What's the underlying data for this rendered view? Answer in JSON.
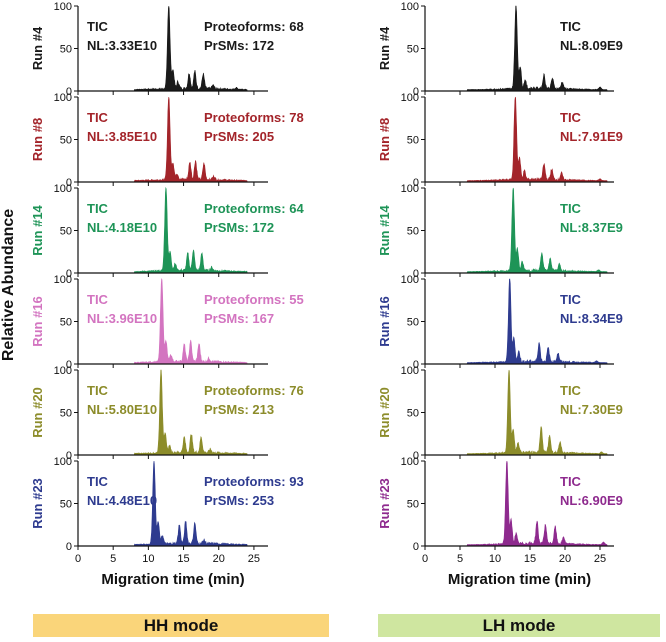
{
  "figure": {
    "ylabel": "Relative Abundance",
    "xlabel": "Migration time (min)",
    "modes": [
      {
        "label": "HH mode",
        "color": "#fad57a"
      },
      {
        "label": "LH mode",
        "color": "#cfe6a0"
      }
    ]
  },
  "chart_data": [
    {
      "type": "area",
      "title": "HH mode",
      "xlabel": "Migration time (min)",
      "ylabel": "Relative Abundance",
      "xlim": [
        0,
        27
      ],
      "ylim": [
        0,
        100
      ],
      "xticks": [
        0,
        5,
        10,
        15,
        20,
        25
      ],
      "yticks": [
        0,
        50,
        100
      ],
      "runs": [
        {
          "run": "Run #4",
          "color": "#1a1a1a",
          "tic": "TIC",
          "nl": "NL:3.33E10",
          "proteoforms": "Proteoforms: 68",
          "prsms": "PrSMs: 172",
          "peaks": [
            [
              12.9,
              100
            ],
            [
              13.5,
              22
            ],
            [
              14.2,
              8
            ],
            [
              15.8,
              18
            ],
            [
              16.6,
              20
            ],
            [
              17.8,
              17
            ],
            [
              19.2,
              4
            ],
            [
              22.5,
              2
            ]
          ],
          "baseline_range": [
            8,
            24
          ]
        },
        {
          "run": "Run #8",
          "color": "#a3242a",
          "tic": "TIC",
          "nl": "NL:3.85E10",
          "proteoforms": "Proteoforms: 78",
          "prsms": "PrSMs: 205",
          "peaks": [
            [
              12.9,
              100
            ],
            [
              13.5,
              20
            ],
            [
              14.1,
              7
            ],
            [
              15.9,
              20
            ],
            [
              16.7,
              22
            ],
            [
              17.9,
              19
            ],
            [
              19.3,
              4
            ]
          ],
          "baseline_range": [
            8,
            24
          ]
        },
        {
          "run": "Run #14",
          "color": "#1e9457",
          "tic": "TIC",
          "nl": "NL:4.18E10",
          "proteoforms": "Proteoforms: 64",
          "prsms": "PrSMs: 172",
          "peaks": [
            [
              12.5,
              100
            ],
            [
              13.1,
              22
            ],
            [
              13.8,
              8
            ],
            [
              15.6,
              20
            ],
            [
              16.4,
              24
            ],
            [
              17.6,
              20
            ],
            [
              19.0,
              4
            ]
          ],
          "baseline_range": [
            8,
            24
          ]
        },
        {
          "run": "Run #16",
          "color": "#d374c0",
          "tic": "TIC",
          "nl": "NL:3.96E10",
          "proteoforms": "Proteoforms: 55",
          "prsms": "PrSMs: 167",
          "peaks": [
            [
              11.9,
              100
            ],
            [
              12.5,
              24
            ],
            [
              13.2,
              8
            ],
            [
              15.1,
              20
            ],
            [
              16.0,
              24
            ],
            [
              17.2,
              21
            ],
            [
              18.6,
              4
            ]
          ],
          "baseline_range": [
            8,
            24
          ]
        },
        {
          "run": "Run #20",
          "color": "#8c8c2a",
          "tic": "TIC",
          "nl": "NL:5.80E10",
          "proteoforms": "Proteoforms: 76",
          "prsms": "PrSMs: 213",
          "peaks": [
            [
              11.8,
              100
            ],
            [
              12.4,
              22
            ],
            [
              13.0,
              8
            ],
            [
              15.1,
              18
            ],
            [
              16.1,
              22
            ],
            [
              17.5,
              18
            ],
            [
              18.8,
              4
            ]
          ],
          "baseline_range": [
            8,
            24
          ]
        },
        {
          "run": "Run #23",
          "color": "#2e3b8f",
          "tic": "TIC",
          "nl": "NL:4.48E10",
          "proteoforms": "Proteoforms: 93",
          "prsms": "PrSMs: 253",
          "peaks": [
            [
              10.8,
              100
            ],
            [
              11.4,
              26
            ],
            [
              12.0,
              10
            ],
            [
              14.4,
              22
            ],
            [
              15.3,
              26
            ],
            [
              16.6,
              24
            ],
            [
              17.9,
              4
            ]
          ],
          "baseline_range": [
            8,
            24
          ]
        }
      ]
    },
    {
      "type": "area",
      "title": "LH mode",
      "xlabel": "Migration time (min)",
      "ylabel": "Relative Abundance",
      "xlim": [
        0,
        27
      ],
      "ylim": [
        0,
        100
      ],
      "xticks": [
        0,
        5,
        10,
        15,
        20,
        25
      ],
      "yticks": [
        0,
        50,
        100
      ],
      "runs": [
        {
          "run": "Run #4",
          "color": "#1a1a1a",
          "tic": "TIC",
          "nl": "NL:8.09E9",
          "peaks": [
            [
              13.0,
              100
            ],
            [
              13.6,
              26
            ],
            [
              14.3,
              10
            ],
            [
              17.0,
              16
            ],
            [
              18.2,
              12
            ],
            [
              19.6,
              8
            ],
            [
              25.0,
              3
            ]
          ],
          "baseline_range": [
            6,
            26
          ]
        },
        {
          "run": "Run #8",
          "color": "#a3242a",
          "tic": "TIC",
          "nl": "NL:7.91E9",
          "peaks": [
            [
              12.9,
              100
            ],
            [
              13.5,
              26
            ],
            [
              14.2,
              10
            ],
            [
              17.0,
              18
            ],
            [
              18.1,
              12
            ],
            [
              19.5,
              8
            ],
            [
              25.0,
              2
            ]
          ],
          "baseline_range": [
            6,
            26
          ]
        },
        {
          "run": "Run #14",
          "color": "#1e9457",
          "tic": "TIC",
          "nl": "NL:8.37E9",
          "peaks": [
            [
              12.6,
              100
            ],
            [
              13.2,
              26
            ],
            [
              13.9,
              10
            ],
            [
              16.7,
              20
            ],
            [
              17.9,
              14
            ],
            [
              19.2,
              8
            ],
            [
              24.8,
              2
            ]
          ],
          "baseline_range": [
            6,
            26
          ]
        },
        {
          "run": "Run #16",
          "color": "#2e3b8f",
          "tic": "TIC",
          "nl": "NL:8.34E9",
          "peaks": [
            [
              12.1,
              100
            ],
            [
              12.7,
              28
            ],
            [
              13.4,
              12
            ],
            [
              16.3,
              22
            ],
            [
              17.6,
              16
            ],
            [
              19.0,
              10
            ],
            [
              24.5,
              2
            ]
          ],
          "baseline_range": [
            6,
            26
          ]
        },
        {
          "run": "Run #20",
          "color": "#8c8c2a",
          "tic": "TIC",
          "nl": "NL:7.30E9",
          "peaks": [
            [
              12.0,
              100
            ],
            [
              12.6,
              28
            ],
            [
              13.3,
              12
            ],
            [
              16.6,
              30
            ],
            [
              17.8,
              20
            ],
            [
              19.3,
              12
            ],
            [
              25.2,
              2
            ]
          ],
          "baseline_range": [
            6,
            26
          ]
        },
        {
          "run": "Run #23",
          "color": "#8e2a8e",
          "tic": "TIC",
          "nl": "NL:6.90E9",
          "peaks": [
            [
              11.7,
              100
            ],
            [
              12.3,
              28
            ],
            [
              13.0,
              12
            ],
            [
              16.0,
              26
            ],
            [
              17.2,
              22
            ],
            [
              18.6,
              20
            ],
            [
              19.8,
              8
            ],
            [
              25.5,
              3
            ]
          ],
          "baseline_range": [
            6,
            26
          ]
        }
      ]
    }
  ]
}
